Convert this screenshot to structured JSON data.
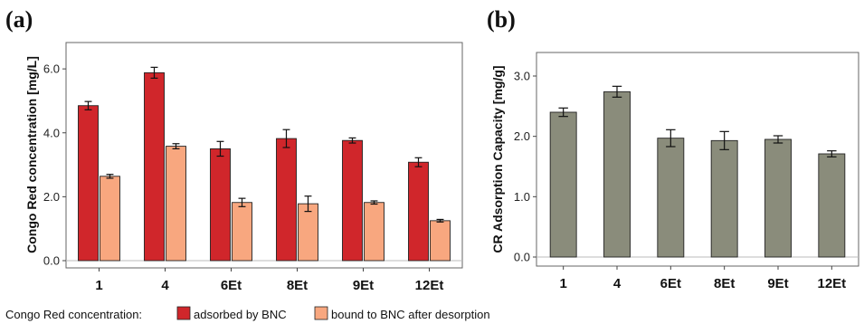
{
  "chart_data": [
    {
      "type": "bar",
      "panel_label": "(a)",
      "ylabel": "Congo Red concentration [mg/L]",
      "categories": [
        "1",
        "4",
        "6Et",
        "8Et",
        "9Et",
        "12Et"
      ],
      "ylim": [
        0,
        6.4
      ],
      "yticks": [
        0,
        2,
        4,
        6
      ],
      "ytick_labels": [
        "0.0",
        "2.0",
        "4.0",
        "6.0"
      ],
      "grid": false,
      "series": [
        {
          "name": "adsorbed by BNC",
          "color": "#d0262b",
          "values": [
            4.85,
            5.88,
            3.5,
            3.82,
            3.76,
            3.08
          ],
          "errors": [
            0.13,
            0.17,
            0.23,
            0.28,
            0.08,
            0.14
          ]
        },
        {
          "name": "bound to BNC after desorption",
          "color": "#f8a77f",
          "values": [
            2.64,
            3.58,
            1.82,
            1.78,
            1.82,
            1.25
          ],
          "errors": [
            0.06,
            0.08,
            0.13,
            0.24,
            0.05,
            0.04
          ]
        }
      ],
      "legend": {
        "prefix": "Congo Red concentration:",
        "placement": "bottom-left"
      }
    },
    {
      "type": "bar",
      "panel_label": "(b)",
      "ylabel": "CR Adsorption Capacity [mg/g]",
      "categories": [
        "1",
        "4",
        "6Et",
        "8Et",
        "9Et",
        "12Et"
      ],
      "ylim": [
        0,
        3.15
      ],
      "yticks": [
        0,
        1,
        2,
        3
      ],
      "ytick_labels": [
        "0.0",
        "1.0",
        "2.0",
        "3.0"
      ],
      "grid": false,
      "series": [
        {
          "color": "#8a8c7b",
          "values": [
            2.4,
            2.74,
            1.97,
            1.93,
            1.95,
            1.71
          ],
          "errors": [
            0.07,
            0.09,
            0.14,
            0.15,
            0.06,
            0.05
          ]
        }
      ]
    }
  ]
}
